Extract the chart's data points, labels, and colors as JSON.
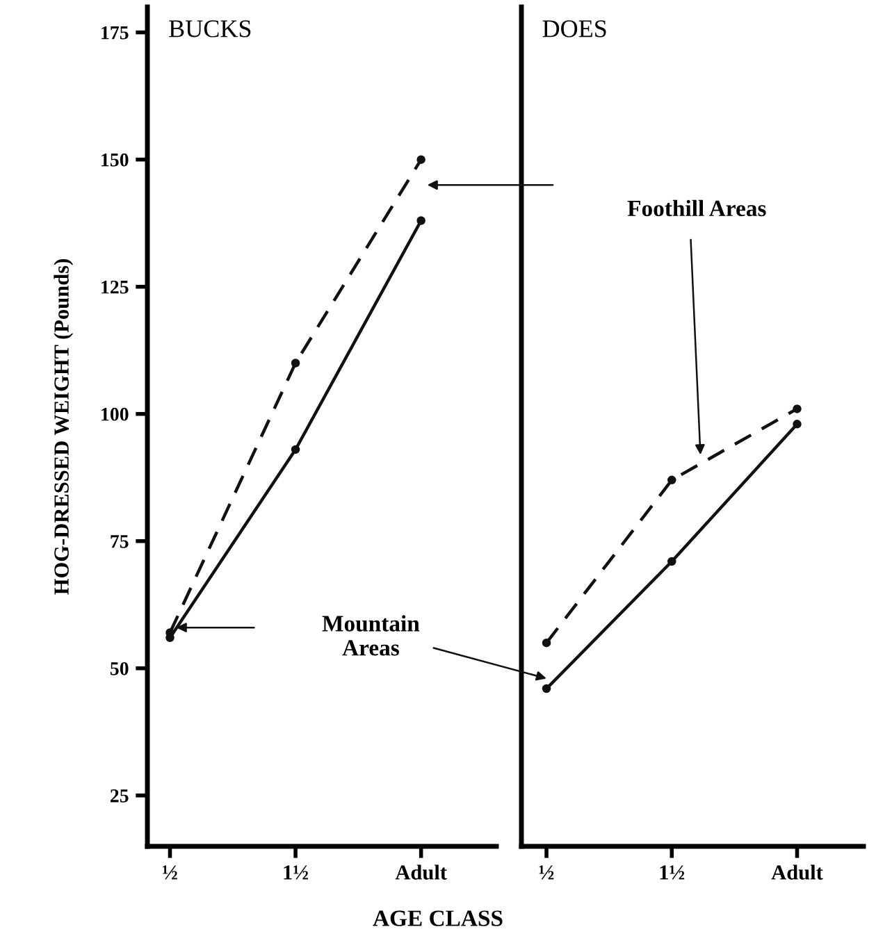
{
  "chart_data": [
    {
      "type": "line",
      "title": "BUCKS",
      "ylabel": "HOG-DRESSED WEIGHT (Pounds)",
      "xlabel": "AGE CLASS",
      "categories": [
        "½",
        "1½",
        "Adult"
      ],
      "ylim": [
        15,
        180
      ],
      "yticks": [
        25,
        50,
        75,
        100,
        125,
        150,
        175
      ],
      "marker": "circle",
      "grid": false,
      "legend": false,
      "series": [
        {
          "color": "#111111",
          "line_style": "dashed",
          "values": [
            57,
            110,
            150
          ]
        },
        {
          "color": "#111111",
          "line_style": "solid",
          "values": [
            56,
            93,
            138
          ]
        }
      ],
      "annotations": [
        "Mountain\nAreas"
      ]
    },
    {
      "type": "line",
      "title": "DOES",
      "categories": [
        "½",
        "1½",
        "Adult"
      ],
      "ylim": [
        15,
        180
      ],
      "tick_labels": "x",
      "marker": "circle",
      "grid": false,
      "legend": false,
      "series": [
        {
          "color": "#111111",
          "line_style": "dashed",
          "values": [
            55,
            87,
            101
          ]
        },
        {
          "color": "#111111",
          "line_style": "solid",
          "values": [
            46,
            71,
            98
          ]
        }
      ],
      "annotations": [
        "Foothill Areas"
      ]
    }
  ]
}
